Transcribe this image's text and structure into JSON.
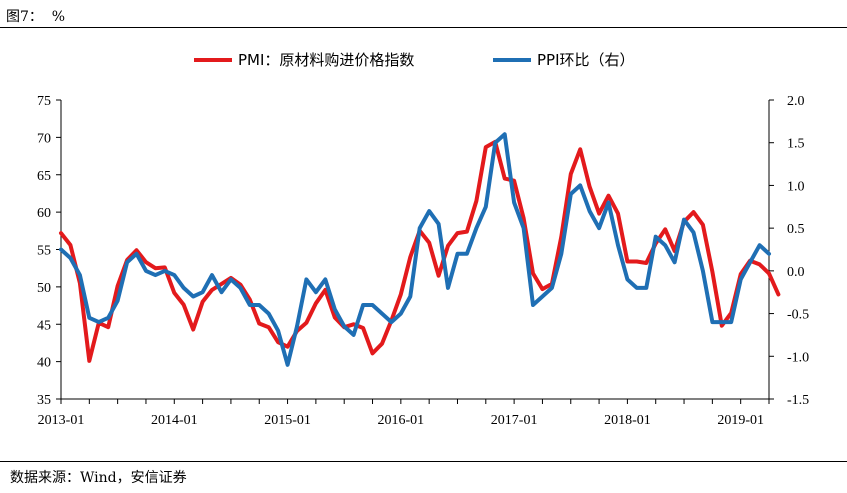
{
  "figure_title": "图7：  %",
  "source_note": "数据来源：Wind，安信证券",
  "chart_data": {
    "type": "line",
    "title": "",
    "legend_position": "top-center",
    "grid": false,
    "x_axis": {
      "ticks": [
        "2013-01",
        "2014-01",
        "2015-01",
        "2016-01",
        "2017-01",
        "2018-01",
        "2019-01"
      ],
      "range": [
        "2013-01",
        "2019-04"
      ]
    },
    "y_left": {
      "range": [
        35,
        75
      ],
      "ticks": [
        "75",
        "70",
        "65",
        "60",
        "55",
        "50",
        "45",
        "40",
        "35"
      ]
    },
    "y_right": {
      "range": [
        -1.5,
        2.0
      ],
      "ticks": [
        "2.0",
        "1.5",
        "1.0",
        "0.5",
        "0.0",
        "-0.5",
        "-1.0",
        "-1.5"
      ]
    },
    "series": [
      {
        "name": "PMI：原材料购进价格指数",
        "axis": "left",
        "color": "#e31a1c",
        "start": "2013-01",
        "values": [
          57.2,
          55.6,
          50.5,
          40.1,
          45.2,
          44.6,
          50.1,
          53.6,
          54.9,
          53.3,
          52.5,
          52.6,
          49.2,
          47.6,
          44.3,
          48.0,
          49.6,
          50.4,
          51.2,
          50.3,
          48.3,
          45.1,
          44.6,
          42.6,
          42.0,
          44.1,
          45.2,
          47.8,
          49.6,
          45.9,
          44.6,
          45.0,
          44.5,
          41.1,
          42.4,
          45.5,
          49.0,
          54.0,
          57.5,
          55.9,
          51.5,
          55.5,
          57.2,
          57.4,
          61.5,
          68.7,
          69.4,
          64.5,
          64.2,
          59.2,
          51.8,
          49.7,
          50.4,
          56.7,
          65.1,
          68.4,
          63.4,
          59.8,
          62.2,
          59.8,
          53.4,
          53.4,
          53.2,
          55.8,
          57.7,
          54.8,
          58.7,
          60.0,
          58.3,
          52.0,
          44.8,
          46.5,
          51.7,
          53.5,
          53.0,
          51.8,
          49.0
        ]
      },
      {
        "name": "PPI环比（右）",
        "axis": "right",
        "color": "#1f6fb4",
        "start": "2013-01",
        "values": [
          0.25,
          0.15,
          -0.05,
          -0.55,
          -0.6,
          -0.55,
          -0.35,
          0.1,
          0.2,
          0.0,
          -0.05,
          0.0,
          -0.05,
          -0.2,
          -0.3,
          -0.25,
          -0.05,
          -0.25,
          -0.1,
          -0.2,
          -0.4,
          -0.4,
          -0.5,
          -0.7,
          -1.1,
          -0.65,
          -0.1,
          -0.25,
          -0.1,
          -0.45,
          -0.65,
          -0.75,
          -0.4,
          -0.4,
          -0.5,
          -0.6,
          -0.5,
          -0.3,
          0.5,
          0.7,
          0.55,
          -0.2,
          0.2,
          0.2,
          0.5,
          0.75,
          1.5,
          1.6,
          0.8,
          0.5,
          -0.4,
          -0.3,
          -0.2,
          0.2,
          0.9,
          1.0,
          0.7,
          0.5,
          0.8,
          0.3,
          -0.1,
          -0.2,
          -0.2,
          0.4,
          0.3,
          0.1,
          0.6,
          0.45,
          0.0,
          -0.6,
          -0.6,
          -0.6,
          -0.1,
          0.1,
          0.3,
          0.2
        ]
      }
    ]
  }
}
